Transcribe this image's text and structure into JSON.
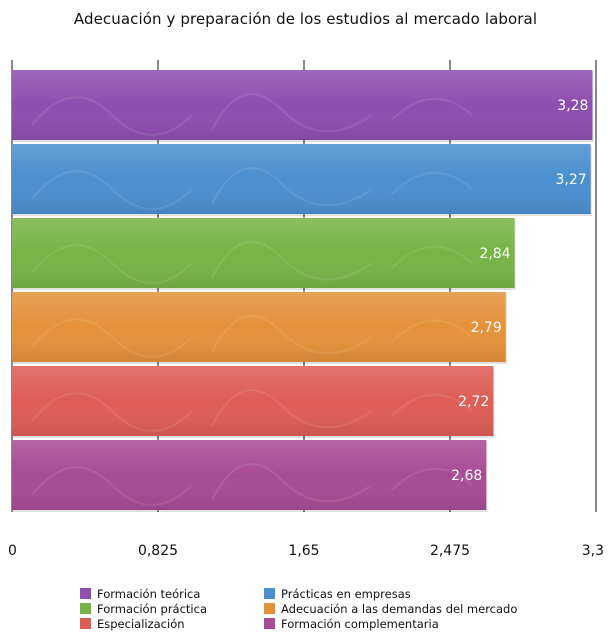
{
  "chart_data": {
    "type": "bar",
    "orientation": "horizontal",
    "title": "Adecuación y preparación de los estudios al mercado laboral",
    "xlim": [
      0,
      3.3
    ],
    "xticks": [
      "0",
      "0,825",
      "1,65",
      "2,475",
      "3,3"
    ],
    "xtick_values": [
      0,
      0.825,
      1.65,
      2.475,
      3.3
    ],
    "grid": true,
    "legend_position": "bottom",
    "series": [
      {
        "name": "Formación teórica",
        "value": 3.28,
        "label": "3,28",
        "color": "#8e4fb0"
      },
      {
        "name": "Prácticas en empresas",
        "value": 3.27,
        "label": "3,27",
        "color": "#4a8fd0"
      },
      {
        "name": "Formación práctica",
        "value": 2.84,
        "label": "2,84",
        "color": "#78b445"
      },
      {
        "name": "Adecuación a las demandas del mercado",
        "value": 2.79,
        "label": "2,79",
        "color": "#e5913a"
      },
      {
        "name": "Especialización",
        "value": 2.72,
        "label": "2,72",
        "color": "#de5d55"
      },
      {
        "name": "Formación complementaria",
        "value": 2.68,
        "label": "2,68",
        "color": "#a84b95"
      }
    ]
  }
}
